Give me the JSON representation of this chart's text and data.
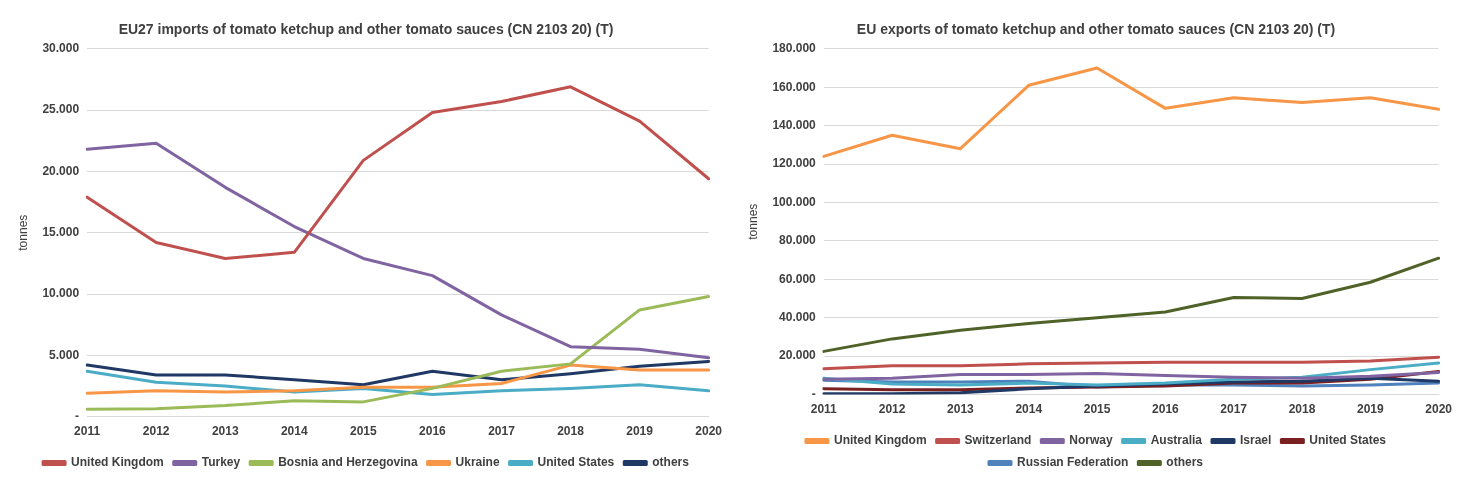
{
  "chart_data": [
    {
      "type": "line",
      "title": "EU27 imports of tomato ketchup and other tomato sauces (CN 2103 20) (T)",
      "ylabel": "tonnes",
      "categories": [
        "2011",
        "2012",
        "2013",
        "2014",
        "2015",
        "2016",
        "2017",
        "2018",
        "2019",
        "2020"
      ],
      "ylim": [
        0,
        30000
      ],
      "yticks": [
        {
          "value": 0,
          "label": "-"
        },
        {
          "value": 5000,
          "label": "5.000"
        },
        {
          "value": 10000,
          "label": "10.000"
        },
        {
          "value": 15000,
          "label": "15.000"
        },
        {
          "value": 20000,
          "label": "20.000"
        },
        {
          "value": 25000,
          "label": "25.000"
        },
        {
          "value": 30000,
          "label": "30.000"
        }
      ],
      "grid": "y",
      "legend": "bottom",
      "marker": "none",
      "line_style": "solid",
      "series": [
        {
          "name": "United Kingdom",
          "color": "#c0504d",
          "values": [
            17900,
            14200,
            12900,
            13400,
            20900,
            24800,
            25700,
            26900,
            24100,
            19400
          ]
        },
        {
          "name": "Turkey",
          "color": "#8064a2",
          "values": [
            21800,
            22300,
            18700,
            15500,
            12900,
            11500,
            8300,
            5700,
            5500,
            4800
          ]
        },
        {
          "name": "Bosnia and Herzegovina",
          "color": "#9bbb59",
          "values": [
            600,
            650,
            900,
            1300,
            1200,
            2300,
            3700,
            4300,
            8700,
            9800
          ]
        },
        {
          "name": "Ukraine",
          "color": "#f79646",
          "values": [
            1900,
            2100,
            2000,
            2100,
            2400,
            2400,
            2700,
            4200,
            3800,
            3800
          ]
        },
        {
          "name": "United States",
          "color": "#4bacc6",
          "values": [
            3700,
            2800,
            2500,
            2000,
            2300,
            1800,
            2100,
            2300,
            2600,
            2100
          ]
        },
        {
          "name": "others",
          "color": "#1f3864",
          "values": [
            4200,
            3400,
            3400,
            3000,
            2600,
            3700,
            3000,
            3500,
            4100,
            4500
          ]
        }
      ]
    },
    {
      "type": "line",
      "title": "EU exports of tomato ketchup and other tomato sauces (CN 2103 20) (T)",
      "ylabel": "tonnes",
      "categories": [
        "2011",
        "2012",
        "2013",
        "2014",
        "2015",
        "2016",
        "2017",
        "2018",
        "2019",
        "2020"
      ],
      "ylim": [
        0,
        180000
      ],
      "yticks": [
        {
          "value": 0,
          "label": "-"
        },
        {
          "value": 20000,
          "label": "20.000"
        },
        {
          "value": 40000,
          "label": "40.000"
        },
        {
          "value": 60000,
          "label": "60.000"
        },
        {
          "value": 80000,
          "label": "80.000"
        },
        {
          "value": 100000,
          "label": "100.000"
        },
        {
          "value": 120000,
          "label": "120.000"
        },
        {
          "value": 140000,
          "label": "140.000"
        },
        {
          "value": 160000,
          "label": "160.000"
        },
        {
          "value": 180000,
          "label": "180.000"
        }
      ],
      "grid": "y",
      "legend": "bottom",
      "marker": "none",
      "line_style": "solid",
      "series": [
        {
          "name": "United Kingdom",
          "color": "#f79646",
          "values": [
            124000,
            135000,
            128000,
            161000,
            170000,
            149000,
            154500,
            152000,
            154500,
            148500
          ]
        },
        {
          "name": "Switzerland",
          "color": "#c0504d",
          "values": [
            13500,
            15000,
            15000,
            16000,
            16500,
            16800,
            16800,
            16800,
            17500,
            19500
          ]
        },
        {
          "name": "Norway",
          "color": "#8064a2",
          "values": [
            8000,
            8500,
            10500,
            10500,
            11000,
            10000,
            9000,
            8500,
            9500,
            11500
          ]
        },
        {
          "name": "Australia",
          "color": "#4bacc6",
          "values": [
            8500,
            5500,
            5000,
            6000,
            5000,
            6000,
            8000,
            9000,
            13000,
            16500
          ]
        },
        {
          "name": "Israel",
          "color": "#1f3864",
          "values": [
            500,
            500,
            1000,
            3000,
            4500,
            5500,
            6500,
            7000,
            8500,
            7000
          ]
        },
        {
          "name": "United States",
          "color": "#7b2020",
          "values": [
            3000,
            2500,
            2500,
            3500,
            4000,
            4500,
            6000,
            6000,
            8000,
            12000
          ]
        },
        {
          "name": "Russian Federation",
          "color": "#4f81bd",
          "values": [
            7500,
            6500,
            6500,
            7000,
            4000,
            5000,
            5000,
            4500,
            5000,
            6000
          ]
        },
        {
          "name": "others",
          "color": "#4f6228",
          "values": [
            22500,
            29000,
            33500,
            37000,
            40000,
            43000,
            50500,
            50000,
            58500,
            71000
          ]
        }
      ]
    }
  ]
}
